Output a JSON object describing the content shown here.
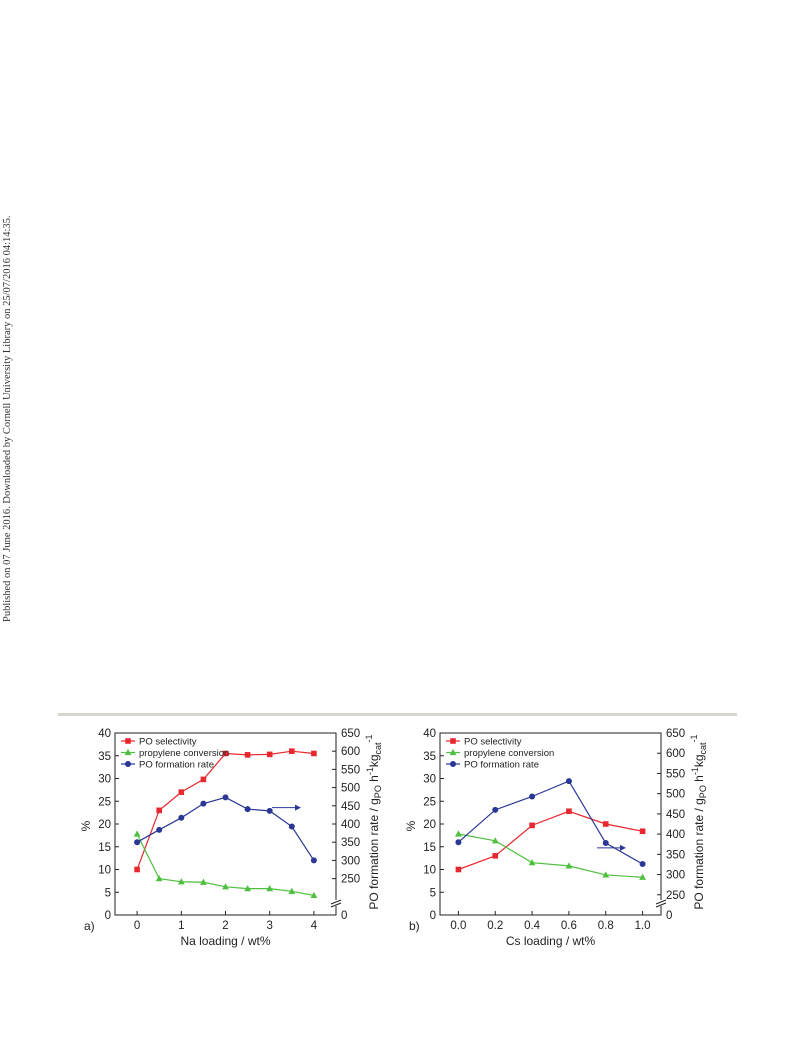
{
  "side_note": "Published on 07 June 2016. Downloaded by Cornell University Library on 25/07/2016 04:14:35.",
  "colors": {
    "selectivity": "#e8282e",
    "conversion": "#4fbf3f",
    "rate": "#2a3796",
    "divider": "#d6d6cf"
  },
  "chart_data": [
    {
      "type": "line",
      "panel_label": "a)",
      "xlabel": "Na loading / wt%",
      "ylabel_left": "%",
      "ylabel_right": "PO formation rate / g",
      "ylabel_right_sub": "PO",
      "ylabel_right_tail": " h",
      "ylabel_right_sup1": "-1",
      "ylabel_right_kg": "kg",
      "ylabel_right_sub2": "cat",
      "ylabel_right_sup2": "-1",
      "xlim": [
        -0.5,
        4.5
      ],
      "xticks": [
        0,
        1,
        2,
        3,
        4
      ],
      "xtick_labels": [
        "0",
        "1",
        "2",
        "3",
        "4"
      ],
      "ylim": [
        0,
        40
      ],
      "yticks": [
        0,
        5,
        10,
        15,
        20,
        25,
        30,
        35,
        40
      ],
      "y2lim": [
        150,
        650
      ],
      "y2ticks": [
        250,
        300,
        350,
        400,
        450,
        500,
        550,
        600,
        650
      ],
      "y2_axis_labels": [
        "0",
        "250",
        "300",
        "350",
        "400",
        "450",
        "500",
        "550",
        "600",
        "650"
      ],
      "y2_break": true,
      "legend_position": "top-left",
      "arrow_note": "arrow pointing to right axis",
      "series": [
        {
          "name": "PO selectivity",
          "axis": "left",
          "marker": "square",
          "color": "#e8282e",
          "x": [
            0,
            0.5,
            1,
            1.5,
            2,
            2.5,
            3,
            3.5,
            4
          ],
          "y": [
            10,
            23,
            27,
            29.8,
            35.5,
            35.2,
            35.3,
            36,
            35.5
          ]
        },
        {
          "name": "propylene conversion",
          "axis": "left",
          "marker": "triangle",
          "color": "#4fbf3f",
          "x": [
            0,
            0.5,
            1,
            1.5,
            2,
            2.5,
            3,
            3.5,
            4
          ],
          "y": [
            17.8,
            8,
            7.3,
            7.2,
            6.2,
            5.8,
            5.8,
            5.2,
            4.3
          ]
        },
        {
          "name": "PO formation rate",
          "axis": "right",
          "marker": "circle",
          "color": "#2a3796",
          "x": [
            0,
            0.5,
            1,
            1.5,
            2,
            2.5,
            3,
            3.5,
            4
          ],
          "y": [
            350,
            384,
            417,
            456,
            473,
            441,
            436,
            393,
            300
          ]
        }
      ]
    },
    {
      "type": "line",
      "panel_label": "b)",
      "xlabel": "Cs loading / wt%",
      "ylabel_left": "%",
      "ylabel_right": "PO formation rate / g",
      "ylabel_right_sub": "PO",
      "ylabel_right_tail": " h",
      "ylabel_right_sup1": "-1",
      "ylabel_right_kg": "kg",
      "ylabel_right_sub2": "cat",
      "ylabel_right_sup2": "-1",
      "xlim": [
        -0.1,
        1.1
      ],
      "xticks": [
        0.0,
        0.2,
        0.4,
        0.6,
        0.8,
        1.0
      ],
      "xtick_labels": [
        "0.0",
        "0.2",
        "0.4",
        "0.6",
        "0.8",
        "1.0"
      ],
      "ylim": [
        0,
        40
      ],
      "yticks": [
        0,
        5,
        10,
        15,
        20,
        25,
        30,
        35,
        40
      ],
      "y2lim": [
        200,
        650
      ],
      "y2ticks": [
        250,
        300,
        350,
        400,
        450,
        500,
        550,
        600,
        650
      ],
      "y2_axis_labels": [
        "0",
        "250",
        "300",
        "350",
        "400",
        "450",
        "500",
        "550",
        "600",
        "650"
      ],
      "y2_break": true,
      "legend_position": "top-left",
      "arrow_note": "arrow pointing to right axis",
      "series": [
        {
          "name": "PO selectivity",
          "axis": "left",
          "marker": "square",
          "color": "#e8282e",
          "x": [
            0.0,
            0.2,
            0.4,
            0.6,
            0.8,
            1.0
          ],
          "y": [
            10,
            13,
            19.7,
            22.8,
            20,
            18.4
          ]
        },
        {
          "name": "propylene conversion",
          "axis": "left",
          "marker": "triangle",
          "color": "#4fbf3f",
          "x": [
            0.0,
            0.2,
            0.4,
            0.6,
            0.8,
            1.0
          ],
          "y": [
            17.8,
            16.3,
            11.5,
            10.8,
            8.8,
            8.3
          ]
        },
        {
          "name": "PO formation rate",
          "axis": "right",
          "marker": "circle",
          "color": "#2a3796",
          "x": [
            0.0,
            0.2,
            0.4,
            0.6,
            0.8,
            1.0
          ],
          "y": [
            380,
            460,
            493,
            531,
            378,
            326
          ]
        }
      ]
    }
  ]
}
